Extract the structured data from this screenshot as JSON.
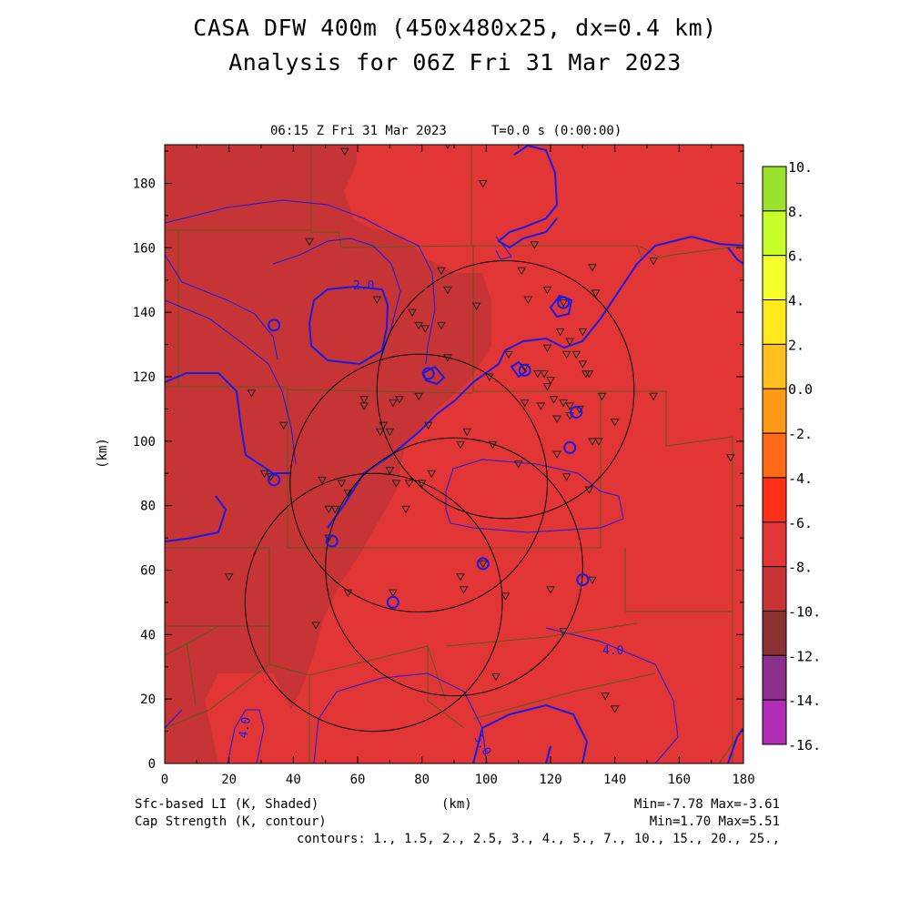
{
  "header": {
    "title_line1": "CASA DFW 400m (450x480x25, dx=0.4 km)",
    "title_line2": "Analysis for 06Z Fri 31 Mar 2023"
  },
  "plot": {
    "time_label": "06:15 Z Fri 31 Mar 2023",
    "time_offset": "T=0.0 s (0:00:00)",
    "x_label": "(km)",
    "y_label": "(km)",
    "x_ticks": [
      "0",
      "20",
      "40",
      "60",
      "80",
      "100",
      "120",
      "140",
      "160",
      "180"
    ],
    "y_ticks": [
      "0",
      "20",
      "40",
      "60",
      "80",
      "100",
      "120",
      "140",
      "160",
      "180"
    ],
    "x_range_km": [
      0,
      180
    ],
    "y_range_km": [
      0,
      192
    ],
    "contour_labels": [
      "2.0",
      "4.0",
      "4.0",
      "5.0"
    ],
    "radar_rings": [
      {
        "cx_km": 106,
        "cy_km": 116,
        "r_km": 40
      },
      {
        "cx_km": 79,
        "cy_km": 87,
        "r_km": 40
      },
      {
        "cx_km": 65,
        "cy_km": 50,
        "r_km": 40
      },
      {
        "cx_km": 90,
        "cy_km": 61,
        "r_km": 40
      }
    ],
    "stations_km": [
      [
        56,
        190
      ],
      [
        88,
        192
      ],
      [
        99,
        180
      ],
      [
        45,
        162
      ],
      [
        115,
        161
      ],
      [
        152,
        156
      ],
      [
        86,
        153
      ],
      [
        111,
        153
      ],
      [
        133,
        154
      ],
      [
        119,
        147
      ],
      [
        88,
        147
      ],
      [
        66,
        144
      ],
      [
        113,
        144
      ],
      [
        134,
        146
      ],
      [
        77,
        140
      ],
      [
        97,
        142
      ],
      [
        124,
        143
      ],
      [
        79,
        136
      ],
      [
        81,
        135
      ],
      [
        86,
        136
      ],
      [
        107,
        127
      ],
      [
        123,
        134
      ],
      [
        130,
        134
      ],
      [
        126,
        131
      ],
      [
        119,
        129
      ],
      [
        128,
        127
      ],
      [
        125,
        127
      ],
      [
        88,
        126
      ],
      [
        130,
        124
      ],
      [
        101,
        120
      ],
      [
        118,
        121
      ],
      [
        112,
        123
      ],
      [
        116,
        121
      ],
      [
        132,
        121
      ],
      [
        119,
        117
      ],
      [
        131,
        121
      ],
      [
        120,
        119
      ],
      [
        27,
        115
      ],
      [
        79,
        114
      ],
      [
        62,
        113
      ],
      [
        73,
        113
      ],
      [
        112,
        112
      ],
      [
        121,
        113
      ],
      [
        124,
        112
      ],
      [
        136,
        114
      ],
      [
        152,
        114
      ],
      [
        62,
        111
      ],
      [
        71,
        112
      ],
      [
        117,
        111
      ],
      [
        126,
        111
      ],
      [
        129,
        110
      ],
      [
        126,
        108
      ],
      [
        37,
        105
      ],
      [
        68,
        105
      ],
      [
        82,
        105
      ],
      [
        140,
        106
      ],
      [
        67,
        103
      ],
      [
        70,
        103
      ],
      [
        94,
        103
      ],
      [
        122,
        107
      ],
      [
        133,
        100
      ],
      [
        135,
        100
      ],
      [
        92,
        99
      ],
      [
        102,
        99
      ],
      [
        122,
        96
      ],
      [
        176,
        95
      ],
      [
        31,
        90
      ],
      [
        33,
        89
      ],
      [
        49,
        88
      ],
      [
        55,
        87
      ],
      [
        70,
        91
      ],
      [
        80,
        87
      ],
      [
        110,
        93
      ],
      [
        125,
        89
      ],
      [
        83,
        90
      ],
      [
        51,
        79
      ],
      [
        57,
        84
      ],
      [
        53,
        79
      ],
      [
        75,
        79
      ],
      [
        132,
        85
      ],
      [
        51,
        70
      ],
      [
        76,
        87
      ],
      [
        72,
        87
      ],
      [
        20,
        58
      ],
      [
        92,
        58
      ],
      [
        99,
        62
      ],
      [
        133,
        57
      ],
      [
        57,
        53
      ],
      [
        71,
        53
      ],
      [
        93,
        54
      ],
      [
        106,
        52
      ],
      [
        120,
        54
      ],
      [
        47,
        43
      ],
      [
        124,
        41
      ],
      [
        103,
        27
      ],
      [
        137,
        21
      ],
      [
        140,
        17
      ]
    ],
    "station_circles_km": [
      [
        34,
        136
      ],
      [
        124,
        143
      ],
      [
        82,
        121
      ],
      [
        112,
        122
      ],
      [
        128,
        109
      ],
      [
        34,
        88
      ],
      [
        52,
        69
      ],
      [
        99,
        62
      ],
      [
        126,
        98
      ],
      [
        71,
        50
      ],
      [
        130,
        57
      ]
    ],
    "colors": {
      "main_shade": "#e23536",
      "dark_shade": "#c73436",
      "contour": "#1a1ae6",
      "county_lines": "#5a5a1a",
      "ring": "#000000"
    }
  },
  "colorbar": {
    "labels": [
      "10.",
      "8.",
      "6.",
      "4.",
      "2.",
      "0.0",
      "-2.",
      "-4.",
      "-6.",
      "-8.",
      "-10.",
      "-12.",
      "-14.",
      "-16."
    ],
    "colors": [
      "#9ce22c",
      "#c8ff2a",
      "#f5ff2a",
      "#ffea1e",
      "#ffc01e",
      "#ff9a18",
      "#ff6a18",
      "#ff3018",
      "#e23536",
      "#c73436",
      "#8a3030",
      "#8c2e8c",
      "#b02eb5",
      "#d83ad8"
    ]
  },
  "footer": {
    "shaded_label": "Sfc-based LI (K, Shaded)",
    "contour_label": "Cap Strength (K, contour)",
    "x_unit": "(km)",
    "shaded_minmax": "Min=-7.78 Max=-3.61",
    "contour_minmax": "Min=1.70 Max=5.51",
    "contours_list": "contours: 1., 1.5, 2., 2.5, 3., 4., 5., 7., 10., 15., 20., 25.,"
  }
}
